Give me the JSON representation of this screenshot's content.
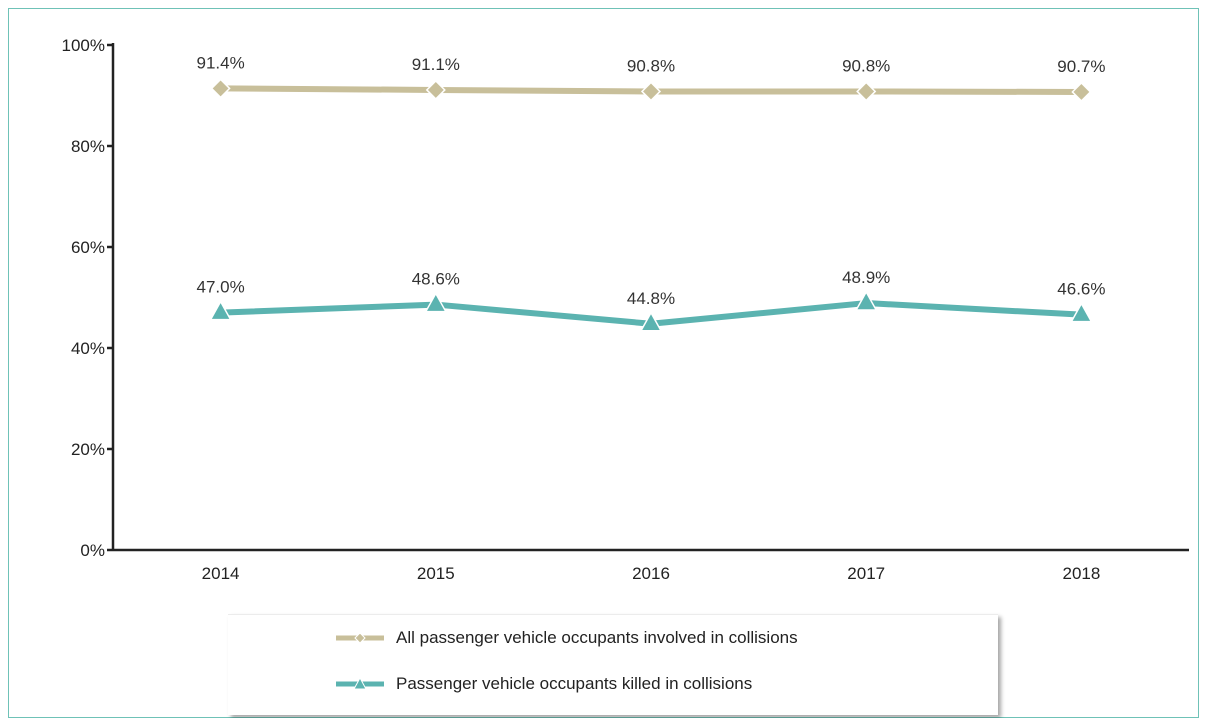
{
  "chart_data": {
    "type": "line",
    "title": "",
    "xlabel": "",
    "ylabel": "",
    "categories": [
      "2014",
      "2015",
      "2016",
      "2017",
      "2018"
    ],
    "ylim": [
      0,
      100
    ],
    "yticks": [
      "0%",
      "20%",
      "40%",
      "60%",
      "80%",
      "100%"
    ],
    "grid": false,
    "legend_position": "bottom",
    "series": [
      {
        "name": "All passenger vehicle occupants involved in collisions",
        "values": [
          91.4,
          91.1,
          90.8,
          90.8,
          90.7
        ],
        "labels": [
          "91.4%",
          "91.1%",
          "90.8%",
          "90.8%",
          "90.7%"
        ],
        "color": "#c8bf9a",
        "marker": "diamond"
      },
      {
        "name": "Passenger vehicle occupants killed in collisions",
        "values": [
          47.0,
          48.6,
          44.8,
          48.9,
          46.6
        ],
        "labels": [
          "47.0%",
          "48.6%",
          "44.8%",
          "48.9%",
          "46.6%"
        ],
        "color": "#5bb3b0",
        "marker": "triangle"
      }
    ]
  }
}
